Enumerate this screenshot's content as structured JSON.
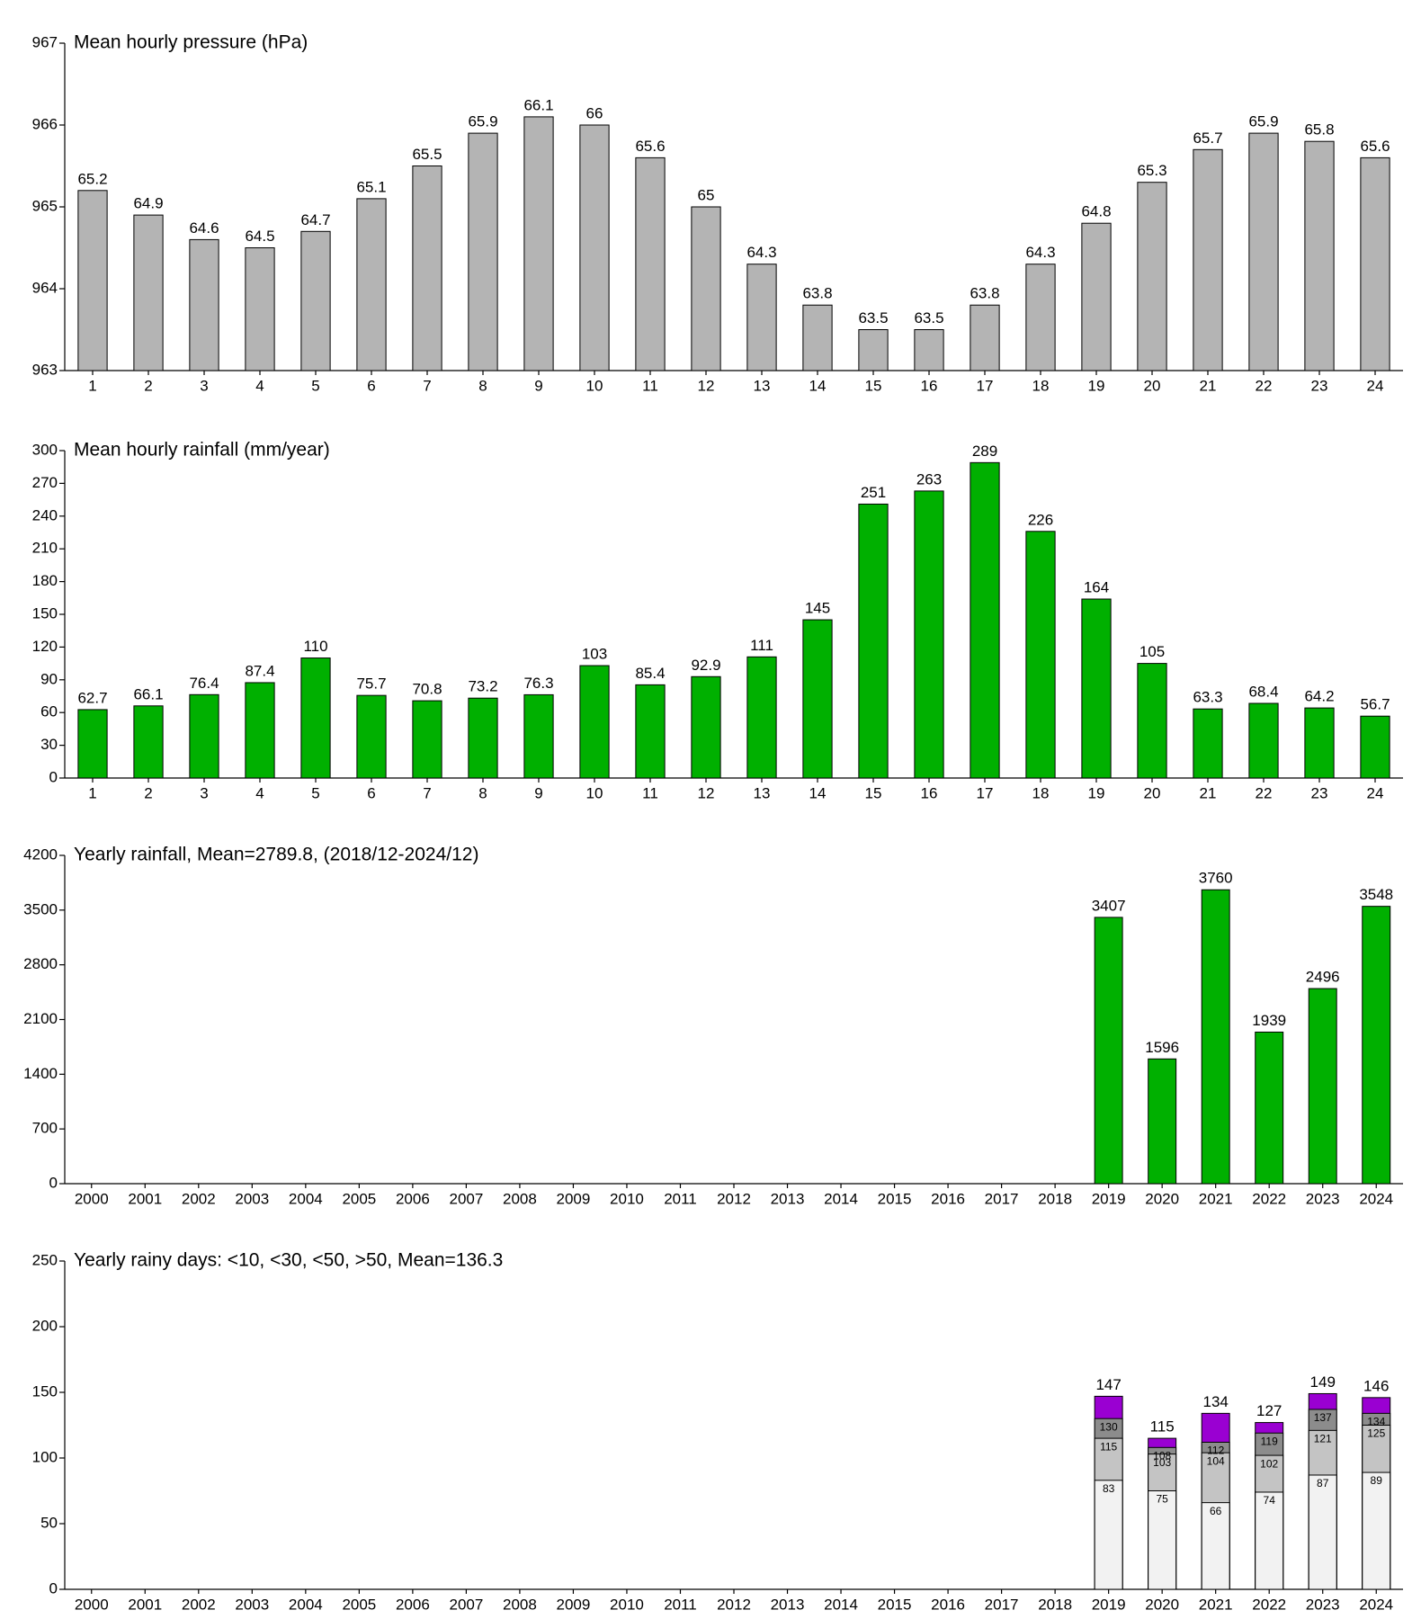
{
  "chart_data": [
    {
      "type": "bar",
      "title": "Mean hourly pressure (hPa)",
      "categories": [
        "1",
        "2",
        "3",
        "4",
        "5",
        "6",
        "7",
        "8",
        "9",
        "10",
        "11",
        "12",
        "13",
        "14",
        "15",
        "16",
        "17",
        "18",
        "19",
        "20",
        "21",
        "22",
        "23",
        "24"
      ],
      "values": [
        965.2,
        964.9,
        964.6,
        964.5,
        964.7,
        965.1,
        965.5,
        965.9,
        966.1,
        966,
        965.6,
        965,
        964.3,
        963.8,
        963.5,
        963.5,
        963.8,
        964.3,
        964.8,
        965.3,
        965.7,
        965.9,
        965.8,
        965.6
      ],
      "value_labels": [
        "65.2",
        "64.9",
        "64.6",
        "64.5",
        "64.7",
        "65.1",
        "65.5",
        "65.9",
        "66.1",
        "66",
        "65.6",
        "65",
        "64.3",
        "63.8",
        "63.5",
        "63.5",
        "63.8",
        "64.3",
        "64.8",
        "65.3",
        "65.7",
        "65.9",
        "65.8",
        "65.6"
      ],
      "color": "#b4b4b4",
      "ylim": [
        963,
        967
      ],
      "yticks": [
        963,
        964,
        965,
        966,
        967
      ]
    },
    {
      "type": "bar",
      "title": "Mean hourly rainfall (mm/year)",
      "categories": [
        "1",
        "2",
        "3",
        "4",
        "5",
        "6",
        "7",
        "8",
        "9",
        "10",
        "11",
        "12",
        "13",
        "14",
        "15",
        "16",
        "17",
        "18",
        "19",
        "20",
        "21",
        "22",
        "23",
        "24"
      ],
      "values": [
        62.7,
        66.1,
        76.4,
        87.4,
        110,
        75.7,
        70.8,
        73.2,
        76.3,
        103,
        85.4,
        92.9,
        111,
        145,
        251,
        263,
        289,
        226,
        164,
        105,
        63.3,
        68.4,
        64.2,
        56.7
      ],
      "color": "#00b000",
      "ylim": [
        0,
        300
      ],
      "yticks": [
        0,
        30,
        60,
        90,
        120,
        150,
        180,
        210,
        240,
        270,
        300
      ]
    },
    {
      "type": "bar",
      "title": "Yearly rainfall, Mean=2789.8, (2018/12-2024/12)",
      "categories": [
        "2000",
        "2001",
        "2002",
        "2003",
        "2004",
        "2005",
        "2006",
        "2007",
        "2008",
        "2009",
        "2010",
        "2011",
        "2012",
        "2013",
        "2014",
        "2015",
        "2016",
        "2017",
        "2018",
        "2019",
        "2020",
        "2021",
        "2022",
        "2023",
        "2024"
      ],
      "values": [
        null,
        null,
        null,
        null,
        null,
        null,
        null,
        null,
        null,
        null,
        null,
        null,
        null,
        null,
        null,
        null,
        null,
        null,
        null,
        3407,
        1596,
        3760,
        1939,
        2496,
        3548
      ],
      "color": "#00b000",
      "ylim": [
        0,
        4200
      ],
      "yticks": [
        0,
        700,
        1400,
        2100,
        2800,
        3500,
        4200
      ]
    },
    {
      "type": "overlap-bar",
      "title": "Yearly rainy days: <10, <30, <50, >50, Mean=136.3",
      "categories": [
        "2000",
        "2001",
        "2002",
        "2003",
        "2004",
        "2005",
        "2006",
        "2007",
        "2008",
        "2009",
        "2010",
        "2011",
        "2012",
        "2013",
        "2014",
        "2015",
        "2016",
        "2017",
        "2018",
        "2019",
        "2020",
        "2021",
        "2022",
        "2023",
        "2024"
      ],
      "series": [
        {
          "color": "#f2f2f2",
          "values": [
            null,
            null,
            null,
            null,
            null,
            null,
            null,
            null,
            null,
            null,
            null,
            null,
            null,
            null,
            null,
            null,
            null,
            null,
            null,
            83,
            75,
            66,
            74,
            87,
            89
          ]
        },
        {
          "color": "#c4c4c4",
          "values": [
            null,
            null,
            null,
            null,
            null,
            null,
            null,
            null,
            null,
            null,
            null,
            null,
            null,
            null,
            null,
            null,
            null,
            null,
            null,
            115,
            103,
            104,
            102,
            121,
            125
          ]
        },
        {
          "color": "#8c8c8c",
          "values": [
            null,
            null,
            null,
            null,
            null,
            null,
            null,
            null,
            null,
            null,
            null,
            null,
            null,
            null,
            null,
            null,
            null,
            null,
            null,
            130,
            108,
            112,
            119,
            137,
            134
          ]
        },
        {
          "color": "#9a00d2",
          "values": [
            null,
            null,
            null,
            null,
            null,
            null,
            null,
            null,
            null,
            null,
            null,
            null,
            null,
            null,
            null,
            null,
            null,
            null,
            null,
            147,
            115,
            134,
            127,
            149,
            146
          ]
        }
      ],
      "ylim": [
        0,
        250
      ],
      "yticks": [
        0,
        50,
        100,
        150,
        200,
        250
      ]
    }
  ]
}
